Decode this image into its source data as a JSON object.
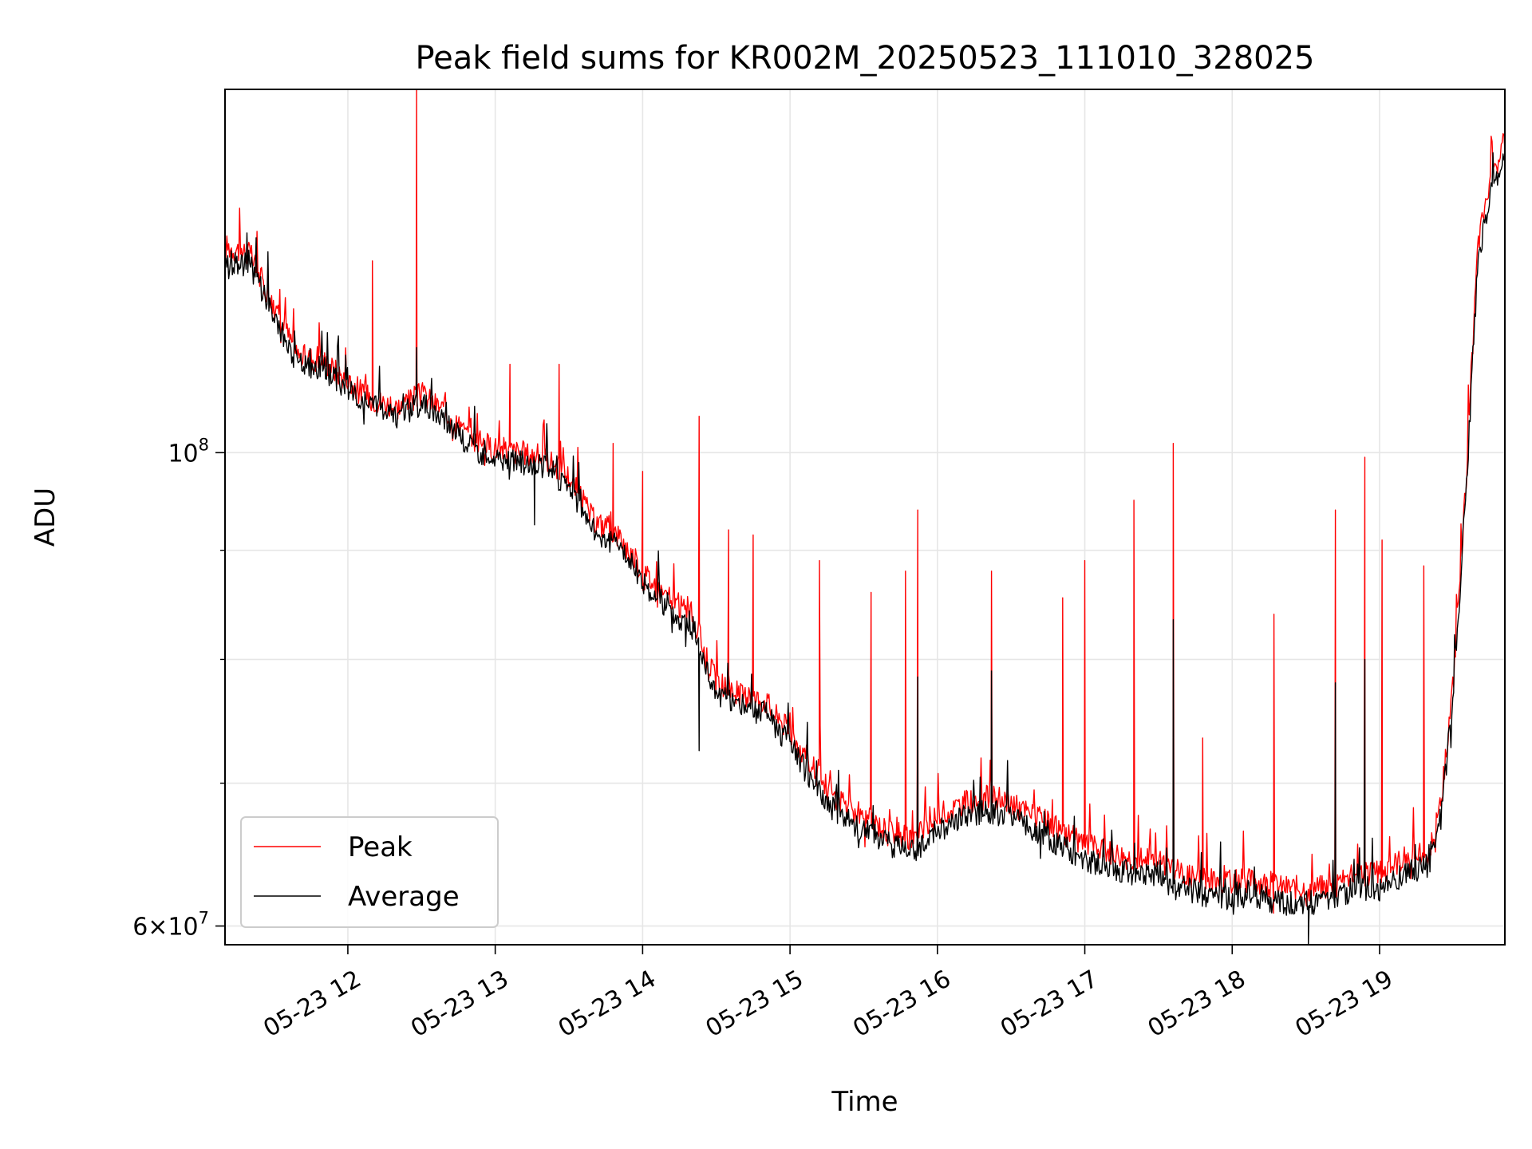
{
  "chart_data": {
    "type": "line",
    "title": "Peak field sums for KR002M_20250523_111010_328025",
    "xlabel": "Time",
    "ylabel": "ADU",
    "y_scale": "log",
    "ylim": [
      58800000,
      148000000
    ],
    "xlim": [
      "2025-05-23 11:10",
      "2025-05-23 19:51"
    ],
    "x_tick_labels": [
      "05-23 12",
      "05-23 13",
      "05-23 14",
      "05-23 15",
      "05-23 16",
      "05-23 17",
      "05-23 18",
      "05-23 19"
    ],
    "y_major_tick_labels": [
      {
        "value": 100000000,
        "base": "10",
        "exp": "8",
        "mantissa": ""
      },
      {
        "value": 60000000,
        "base": "10",
        "exp": "7",
        "mantissa": "6"
      }
    ],
    "y_minor_ticks": [
      70000000,
      80000000,
      90000000
    ],
    "grid": true,
    "legend_location": "lower left",
    "series": [
      {
        "name": "Peak",
        "color": "#ff0000",
        "x": [
          "2025-05-23 11:10",
          "2025-05-23 11:20",
          "2025-05-23 11:30",
          "2025-05-23 11:40",
          "2025-05-23 11:50",
          "2025-05-23 12:00",
          "2025-05-23 12:10",
          "2025-05-23 12:20",
          "2025-05-23 12:30",
          "2025-05-23 12:40",
          "2025-05-23 12:50",
          "2025-05-23 13:00",
          "2025-05-23 13:10",
          "2025-05-23 13:20",
          "2025-05-23 13:30",
          "2025-05-23 13:40",
          "2025-05-23 13:50",
          "2025-05-23 14:00",
          "2025-05-23 14:10",
          "2025-05-23 14:20",
          "2025-05-23 14:30",
          "2025-05-23 14:40",
          "2025-05-23 14:50",
          "2025-05-23 15:00",
          "2025-05-23 15:10",
          "2025-05-23 15:20",
          "2025-05-23 15:30",
          "2025-05-23 15:40",
          "2025-05-23 15:50",
          "2025-05-23 16:00",
          "2025-05-23 16:10",
          "2025-05-23 16:20",
          "2025-05-23 16:30",
          "2025-05-23 16:40",
          "2025-05-23 16:50",
          "2025-05-23 17:00",
          "2025-05-23 17:10",
          "2025-05-23 17:20",
          "2025-05-23 17:30",
          "2025-05-23 17:40",
          "2025-05-23 17:50",
          "2025-05-23 18:00",
          "2025-05-23 18:10",
          "2025-05-23 18:20",
          "2025-05-23 18:30",
          "2025-05-23 18:40",
          "2025-05-23 18:50",
          "2025-05-23 19:00",
          "2025-05-23 19:10",
          "2025-05-23 19:20",
          "2025-05-23 19:25",
          "2025-05-23 19:30",
          "2025-05-23 19:35",
          "2025-05-23 19:40",
          "2025-05-23 19:45",
          "2025-05-23 19:51"
        ],
        "y": [
          125000000,
          124000000,
          117000000,
          111000000,
          110500000,
          108000000,
          106000000,
          105000000,
          106500000,
          104500000,
          101500000,
          100500000,
          100000000,
          99500000,
          97500000,
          93000000,
          91500000,
          88000000,
          85500000,
          84000000,
          78000000,
          77000000,
          76500000,
          74000000,
          71000000,
          68500000,
          67500000,
          66500000,
          66000000,
          67500000,
          68500000,
          69000000,
          68500000,
          67500000,
          66500000,
          65500000,
          65000000,
          64500000,
          64500000,
          63500000,
          63000000,
          63000000,
          63000000,
          62500000,
          62500000,
          62500000,
          63500000,
          63500000,
          64500000,
          65000000,
          68500000,
          78000000,
          96000000,
          125000000,
          134000000,
          140000000
        ],
        "spikes": [
          {
            "x": "2025-05-23 12:10",
            "y": 123000000
          },
          {
            "x": "2025-05-23 12:28",
            "y": 148000000
          },
          {
            "x": "2025-05-23 13:06",
            "y": 110000000
          },
          {
            "x": "2025-05-23 13:26",
            "y": 110000000
          },
          {
            "x": "2025-05-23 13:48",
            "y": 101000000
          },
          {
            "x": "2025-05-23 14:00",
            "y": 98000000
          },
          {
            "x": "2025-05-23 14:23",
            "y": 104000000
          },
          {
            "x": "2025-05-23 14:35",
            "y": 92000000
          },
          {
            "x": "2025-05-23 14:45",
            "y": 91500000
          },
          {
            "x": "2025-05-23 15:12",
            "y": 89000000
          },
          {
            "x": "2025-05-23 15:33",
            "y": 86000000
          },
          {
            "x": "2025-05-23 15:47",
            "y": 88000000
          },
          {
            "x": "2025-05-23 15:52",
            "y": 94000000
          },
          {
            "x": "2025-05-23 16:22",
            "y": 88000000
          },
          {
            "x": "2025-05-23 16:51",
            "y": 85500000
          },
          {
            "x": "2025-05-23 17:00",
            "y": 89000000
          },
          {
            "x": "2025-05-23 17:20",
            "y": 95000000
          },
          {
            "x": "2025-05-23 17:36",
            "y": 101000000
          },
          {
            "x": "2025-05-23 17:48",
            "y": 73500000
          },
          {
            "x": "2025-05-23 18:17",
            "y": 84000000
          },
          {
            "x": "2025-05-23 18:42",
            "y": 94000000
          },
          {
            "x": "2025-05-23 18:54",
            "y": 99500000
          },
          {
            "x": "2025-05-23 19:01",
            "y": 91000000
          },
          {
            "x": "2025-05-23 19:18",
            "y": 88500000
          }
        ]
      },
      {
        "name": "Average",
        "color": "#000000",
        "x": [
          "2025-05-23 11:10",
          "2025-05-23 11:20",
          "2025-05-23 11:30",
          "2025-05-23 11:40",
          "2025-05-23 11:50",
          "2025-05-23 12:00",
          "2025-05-23 12:10",
          "2025-05-23 12:20",
          "2025-05-23 12:30",
          "2025-05-23 12:40",
          "2025-05-23 12:50",
          "2025-05-23 13:00",
          "2025-05-23 13:10",
          "2025-05-23 13:20",
          "2025-05-23 13:30",
          "2025-05-23 13:40",
          "2025-05-23 13:50",
          "2025-05-23 14:00",
          "2025-05-23 14:10",
          "2025-05-23 14:20",
          "2025-05-23 14:30",
          "2025-05-23 14:40",
          "2025-05-23 14:50",
          "2025-05-23 15:00",
          "2025-05-23 15:10",
          "2025-05-23 15:20",
          "2025-05-23 15:30",
          "2025-05-23 15:40",
          "2025-05-23 15:50",
          "2025-05-23 16:00",
          "2025-05-23 16:10",
          "2025-05-23 16:20",
          "2025-05-23 16:30",
          "2025-05-23 16:40",
          "2025-05-23 16:50",
          "2025-05-23 17:00",
          "2025-05-23 17:10",
          "2025-05-23 17:20",
          "2025-05-23 17:30",
          "2025-05-23 17:40",
          "2025-05-23 17:50",
          "2025-05-23 18:00",
          "2025-05-23 18:10",
          "2025-05-23 18:20",
          "2025-05-23 18:30",
          "2025-05-23 18:40",
          "2025-05-23 18:50",
          "2025-05-23 19:00",
          "2025-05-23 19:10",
          "2025-05-23 19:20",
          "2025-05-23 19:25",
          "2025-05-23 19:30",
          "2025-05-23 19:35",
          "2025-05-23 19:40",
          "2025-05-23 19:45",
          "2025-05-23 19:51"
        ],
        "y": [
          123000000,
          122500000,
          115500000,
          110000000,
          109500000,
          107000000,
          105000000,
          104000000,
          105500000,
          103500000,
          100500000,
          99500000,
          99000000,
          98500000,
          96500000,
          92000000,
          90500000,
          87000000,
          84500000,
          83000000,
          77000000,
          76000000,
          75500000,
          73000000,
          70000000,
          67500000,
          66500000,
          65500000,
          65000000,
          66500000,
          67500000,
          68000000,
          67500000,
          66500000,
          65500000,
          64500000,
          64000000,
          63500000,
          63500000,
          62500000,
          62000000,
          62000000,
          62000000,
          61500000,
          61500000,
          61500000,
          62500000,
          62500000,
          63500000,
          64000000,
          67500000,
          77000000,
          95000000,
          123000000,
          132000000,
          138000000
        ],
        "spikes": [
          {
            "x": "2025-05-23 12:28",
            "y": 112000000
          },
          {
            "x": "2025-05-23 13:16",
            "y": 92500000
          },
          {
            "x": "2025-05-23 14:23",
            "y": 72500000
          },
          {
            "x": "2025-05-23 15:52",
            "y": 78500000
          },
          {
            "x": "2025-05-23 16:22",
            "y": 79000000
          },
          {
            "x": "2025-05-23 17:36",
            "y": 83500000
          },
          {
            "x": "2025-05-23 18:31",
            "y": 58800000
          },
          {
            "x": "2025-05-23 18:42",
            "y": 78000000
          },
          {
            "x": "2025-05-23 18:54",
            "y": 80000000
          }
        ]
      }
    ]
  }
}
